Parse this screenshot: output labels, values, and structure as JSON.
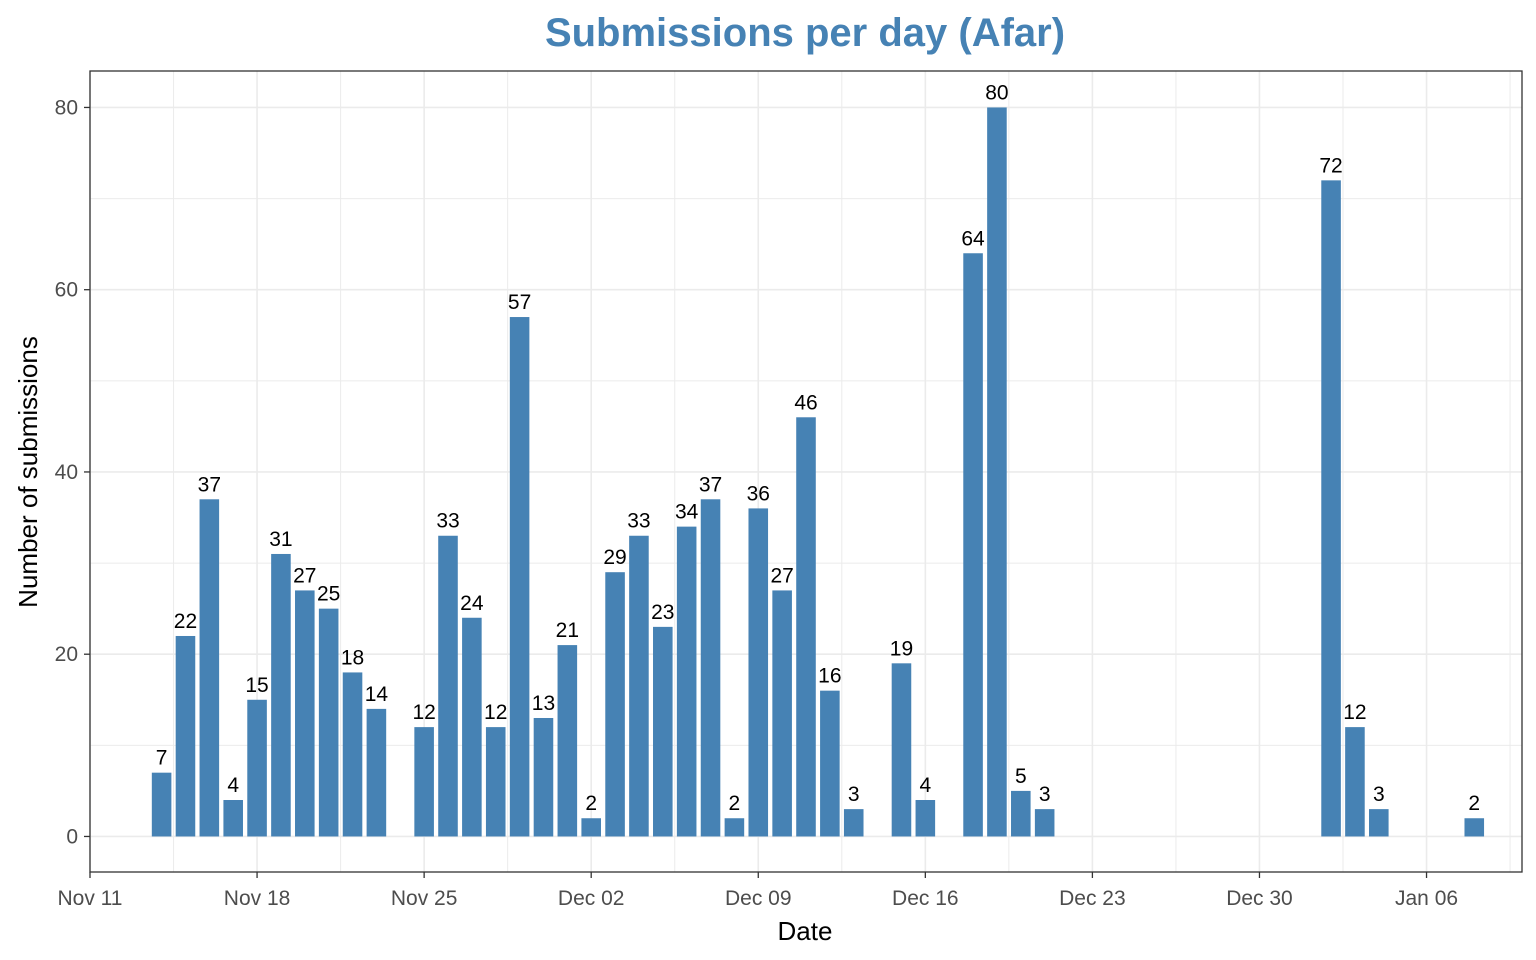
{
  "chart_data": {
    "type": "bar",
    "title": "Submissions per day (Afar)",
    "xlabel": "Date",
    "ylabel": "Number of submissions",
    "x_type": "date",
    "xlim": [
      "2024-11-11",
      "2025-01-10"
    ],
    "ylim": [
      -3.9,
      84
    ],
    "x_ticks": [
      {
        "date": "2024-11-11",
        "label": "Nov 11"
      },
      {
        "date": "2024-11-18",
        "label": "Nov 18"
      },
      {
        "date": "2024-11-25",
        "label": "Nov 25"
      },
      {
        "date": "2024-12-02",
        "label": "Dec 02"
      },
      {
        "date": "2024-12-09",
        "label": "Dec 09"
      },
      {
        "date": "2024-12-16",
        "label": "Dec 16"
      },
      {
        "date": "2024-12-23",
        "label": "Dec 23"
      },
      {
        "date": "2024-12-30",
        "label": "Dec 30"
      },
      {
        "date": "2025-01-06",
        "label": "Jan 06"
      }
    ],
    "y_ticks": [
      0,
      20,
      40,
      60,
      80
    ],
    "grid": true,
    "bar_color": "#4682B4",
    "bars": [
      {
        "date": "2024-11-14",
        "value": 7
      },
      {
        "date": "2024-11-15",
        "value": 22
      },
      {
        "date": "2024-11-16",
        "value": 37
      },
      {
        "date": "2024-11-17",
        "value": 4
      },
      {
        "date": "2024-11-18",
        "value": 15
      },
      {
        "date": "2024-11-19",
        "value": 31
      },
      {
        "date": "2024-11-20",
        "value": 27
      },
      {
        "date": "2024-11-21",
        "value": 25
      },
      {
        "date": "2024-11-22",
        "value": 18
      },
      {
        "date": "2024-11-23",
        "value": 14
      },
      {
        "date": "2024-11-25",
        "value": 12
      },
      {
        "date": "2024-11-26",
        "value": 33
      },
      {
        "date": "2024-11-27",
        "value": 24
      },
      {
        "date": "2024-11-28",
        "value": 12
      },
      {
        "date": "2024-11-29",
        "value": 57
      },
      {
        "date": "2024-11-30",
        "value": 13
      },
      {
        "date": "2024-12-01",
        "value": 21
      },
      {
        "date": "2024-12-02",
        "value": 2
      },
      {
        "date": "2024-12-03",
        "value": 29
      },
      {
        "date": "2024-12-04",
        "value": 33
      },
      {
        "date": "2024-12-05",
        "value": 23
      },
      {
        "date": "2024-12-06",
        "value": 34
      },
      {
        "date": "2024-12-07",
        "value": 37
      },
      {
        "date": "2024-12-08",
        "value": 2
      },
      {
        "date": "2024-12-09",
        "value": 36
      },
      {
        "date": "2024-12-10",
        "value": 27
      },
      {
        "date": "2024-12-11",
        "value": 46
      },
      {
        "date": "2024-12-12",
        "value": 16
      },
      {
        "date": "2024-12-13",
        "value": 3
      },
      {
        "date": "2024-12-15",
        "value": 19
      },
      {
        "date": "2024-12-16",
        "value": 4
      },
      {
        "date": "2024-12-18",
        "value": 64
      },
      {
        "date": "2024-12-19",
        "value": 80
      },
      {
        "date": "2024-12-20",
        "value": 5
      },
      {
        "date": "2024-12-21",
        "value": 3
      },
      {
        "date": "2025-01-02",
        "value": 72
      },
      {
        "date": "2025-01-03",
        "value": 12
      },
      {
        "date": "2025-01-04",
        "value": 3
      },
      {
        "date": "2025-01-08",
        "value": 2
      }
    ]
  }
}
